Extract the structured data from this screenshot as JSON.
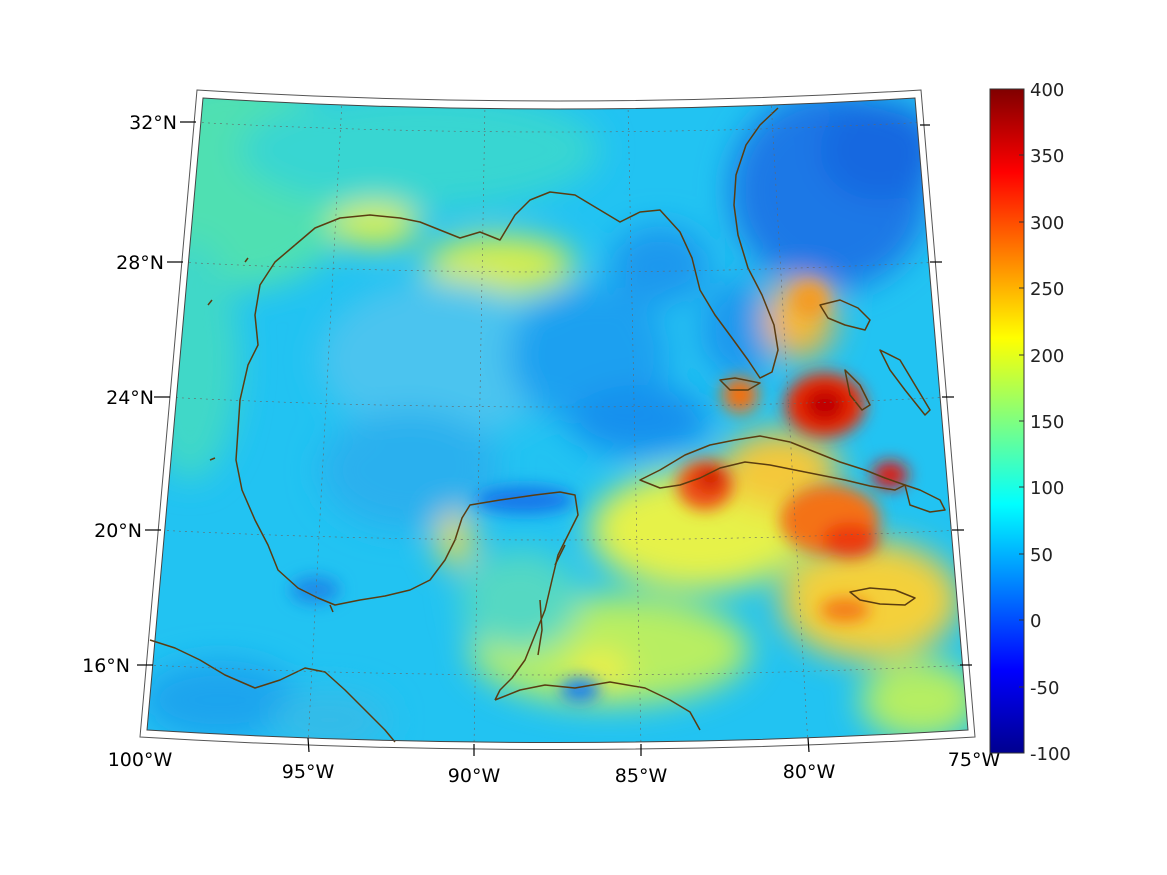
{
  "map": {
    "lon_labels": [
      "100°W",
      "95°W",
      "90°W",
      "85°W",
      "80°W",
      "75°W"
    ],
    "lat_labels": [
      "32°N",
      "28°N",
      "24°N",
      "20°N",
      "16°N"
    ]
  },
  "colorbar": {
    "colormap": "jet",
    "range": [
      -100,
      400
    ],
    "ticks": [
      "400",
      "350",
      "300",
      "250",
      "200",
      "150",
      "100",
      "50",
      "0",
      "-50",
      "-100"
    ]
  },
  "colors": {
    "coastline": "#5a3c10",
    "background_field": "#22c3f2",
    "hotspot": "#d40000"
  }
}
